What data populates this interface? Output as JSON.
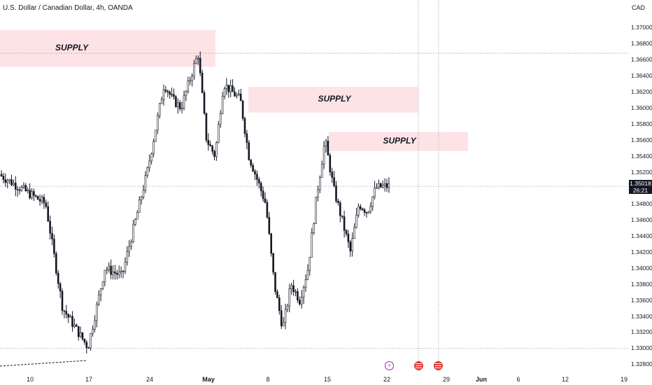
{
  "header": {
    "symbol_title": "U.S. Dollar / Canadian Dollar, 4h, OANDA",
    "currency": "CAD"
  },
  "price_tag": {
    "price": "1.35018",
    "countdown": "26:21"
  },
  "chart_data": {
    "type": "candlestick",
    "title": "U.S. Dollar / Canadian Dollar, 4h, OANDA",
    "ylabel": "CAD",
    "ylim": [
      1.3275,
      1.371
    ],
    "yticks": [
      "1.37000",
      "1.36800",
      "1.36600",
      "1.36400",
      "1.36200",
      "1.36000",
      "1.35800",
      "1.35600",
      "1.35400",
      "1.35200",
      "1.35000",
      "1.34800",
      "1.34600",
      "1.34400",
      "1.34200",
      "1.34000",
      "1.33800",
      "1.33600",
      "1.33400",
      "1.33200",
      "1.33000",
      "1.32800"
    ],
    "xticks": [
      {
        "label": "10",
        "bold": false
      },
      {
        "label": "17",
        "bold": false
      },
      {
        "label": "24",
        "bold": false
      },
      {
        "label": "May",
        "bold": true
      },
      {
        "label": "8",
        "bold": false
      },
      {
        "label": "15",
        "bold": false
      },
      {
        "label": "22",
        "bold": false
      },
      {
        "label": "29",
        "bold": false
      },
      {
        "label": "Jun",
        "bold": true
      },
      {
        "label": "6",
        "bold": false
      },
      {
        "label": "12",
        "bold": false
      },
      {
        "label": "19",
        "bold": false
      }
    ],
    "last_price": 1.35018,
    "horizontal_lines": [
      1.3668,
      1.3502,
      1.33
    ],
    "zones": [
      {
        "label": "SUPPLY",
        "from": "2023-04-06",
        "to": "2023-04-30",
        "top": 1.3697,
        "bottom": 1.3651
      },
      {
        "label": "SUPPLY",
        "from": "2023-05-05",
        "to": "2023-05-26",
        "top": 1.3626,
        "bottom": 1.3594
      },
      {
        "label": "SUPPLY",
        "from": "2023-05-15",
        "to": "2023-05-31",
        "top": 1.357,
        "bottom": 1.3546
      }
    ],
    "anchors": [
      {
        "date": "2023-04-06",
        "price": 1.352
      },
      {
        "date": "2023-04-12",
        "price": 1.348
      },
      {
        "date": "2023-04-14",
        "price": 1.335
      },
      {
        "date": "2023-04-17",
        "price": 1.3301
      },
      {
        "date": "2023-04-19",
        "price": 1.34
      },
      {
        "date": "2023-04-21",
        "price": 1.339
      },
      {
        "date": "2023-04-24",
        "price": 1.352
      },
      {
        "date": "2023-04-26",
        "price": 1.363
      },
      {
        "date": "2023-04-27",
        "price": 1.361
      },
      {
        "date": "2023-04-28",
        "price": 1.36
      },
      {
        "date": "2023-04-30",
        "price": 1.3668
      },
      {
        "date": "2023-05-01",
        "price": 1.356
      },
      {
        "date": "2023-05-02",
        "price": 1.354
      },
      {
        "date": "2023-05-03",
        "price": 1.363
      },
      {
        "date": "2023-05-05",
        "price": 1.361
      },
      {
        "date": "2023-05-06",
        "price": 1.354
      },
      {
        "date": "2023-05-08",
        "price": 1.348
      },
      {
        "date": "2023-05-09",
        "price": 1.338
      },
      {
        "date": "2023-05-10",
        "price": 1.3325
      },
      {
        "date": "2023-05-11",
        "price": 1.338
      },
      {
        "date": "2023-05-12",
        "price": 1.336
      },
      {
        "date": "2023-05-13",
        "price": 1.34
      },
      {
        "date": "2023-05-14",
        "price": 1.349
      },
      {
        "date": "2023-05-15",
        "price": 1.356
      },
      {
        "date": "2023-05-16",
        "price": 1.35
      },
      {
        "date": "2023-05-17",
        "price": 1.346
      },
      {
        "date": "2023-05-18",
        "price": 1.342
      },
      {
        "date": "2023-05-19",
        "price": 1.348
      },
      {
        "date": "2023-05-20",
        "price": 1.347
      },
      {
        "date": "2023-05-21",
        "price": 1.35
      },
      {
        "date": "2023-05-22",
        "price": 1.3502
      }
    ],
    "annotation_labels": [
      "SUPPLY",
      "SUPPLY",
      "SUPPLY"
    ]
  },
  "events": [
    {
      "name": "lightning-event-icon",
      "glyph": "⚡"
    },
    {
      "name": "us-flag-event-icon"
    },
    {
      "name": "us-flag-event-icon"
    }
  ],
  "colors": {
    "candle": "#131722",
    "zone_fill": "#fde3e6",
    "grid_dotted": "#9aa0a6",
    "price_tag_bg": "#131722"
  }
}
